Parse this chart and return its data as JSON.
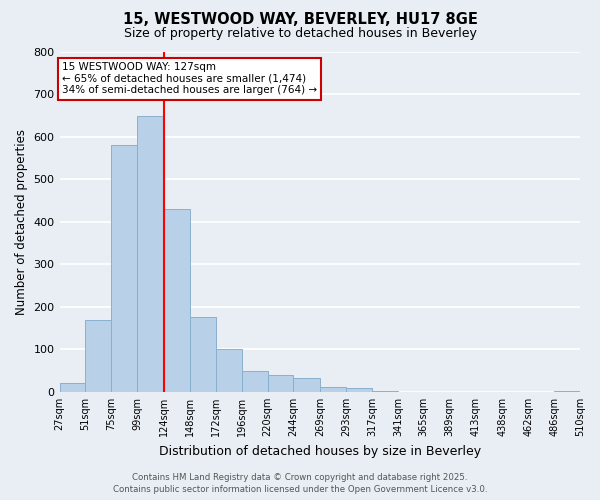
{
  "title": "15, WESTWOOD WAY, BEVERLEY, HU17 8GE",
  "subtitle": "Size of property relative to detached houses in Beverley",
  "xlabel": "Distribution of detached houses by size in Beverley",
  "ylabel": "Number of detached properties",
  "bins": [
    27,
    51,
    75,
    99,
    124,
    148,
    172,
    196,
    220,
    244,
    269,
    293,
    317,
    341,
    365,
    389,
    413,
    438,
    462,
    486,
    510
  ],
  "counts": [
    20,
    170,
    580,
    648,
    430,
    175,
    100,
    50,
    40,
    33,
    12,
    10,
    2,
    1,
    1,
    0,
    0,
    0,
    0,
    2
  ],
  "bar_color": "#b8d0e8",
  "bar_edge_color": "#8ab0d0",
  "red_line_x": 124,
  "annotation_title": "15 WESTWOOD WAY: 127sqm",
  "annotation_line1": "← 65% of detached houses are smaller (1,474)",
  "annotation_line2": "34% of semi-detached houses are larger (764) →",
  "annotation_box_color": "#ffffff",
  "annotation_box_edge_color": "#cc0000",
  "ylim": [
    0,
    800
  ],
  "yticks": [
    0,
    100,
    200,
    300,
    400,
    500,
    600,
    700,
    800
  ],
  "tick_labels": [
    "27sqm",
    "51sqm",
    "75sqm",
    "99sqm",
    "124sqm",
    "148sqm",
    "172sqm",
    "196sqm",
    "220sqm",
    "244sqm",
    "269sqm",
    "293sqm",
    "317sqm",
    "341sqm",
    "365sqm",
    "389sqm",
    "413sqm",
    "438sqm",
    "462sqm",
    "486sqm",
    "510sqm"
  ],
  "footer1": "Contains HM Land Registry data © Crown copyright and database right 2025.",
  "footer2": "Contains public sector information licensed under the Open Government Licence v3.0.",
  "background_color": "#e8eef4",
  "grid_color": "#ffffff"
}
